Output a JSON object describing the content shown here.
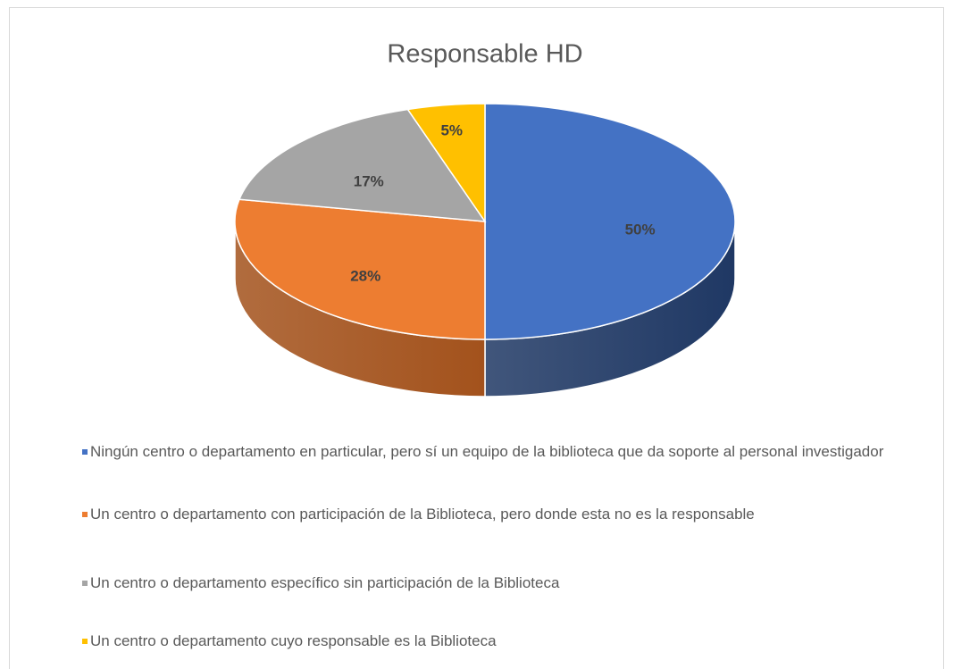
{
  "chart_data": {
    "type": "pie",
    "title": "Responsable HD",
    "categories": [
      "Ningún centro o departamento en particular, pero sí un equipo de la biblioteca que da soporte al personal investigador",
      "Un centro o departamento con participación de la Biblioteca, pero donde esta no es la responsable",
      "Un centro o departamento específico sin participación de la Biblioteca",
      "Un centro o departamento cuyo responsable es la Biblioteca"
    ],
    "values": [
      50,
      28,
      17,
      5
    ],
    "value_labels": [
      "50%",
      "28%",
      "17%",
      "5%"
    ],
    "colors": [
      "#4472c4",
      "#ed7d31",
      "#a5a5a5",
      "#ffc000"
    ],
    "side_colors": [
      "#1f3864",
      "#a3521c",
      "#6e6e6e",
      "#b38600"
    ],
    "legend": "bottom"
  }
}
